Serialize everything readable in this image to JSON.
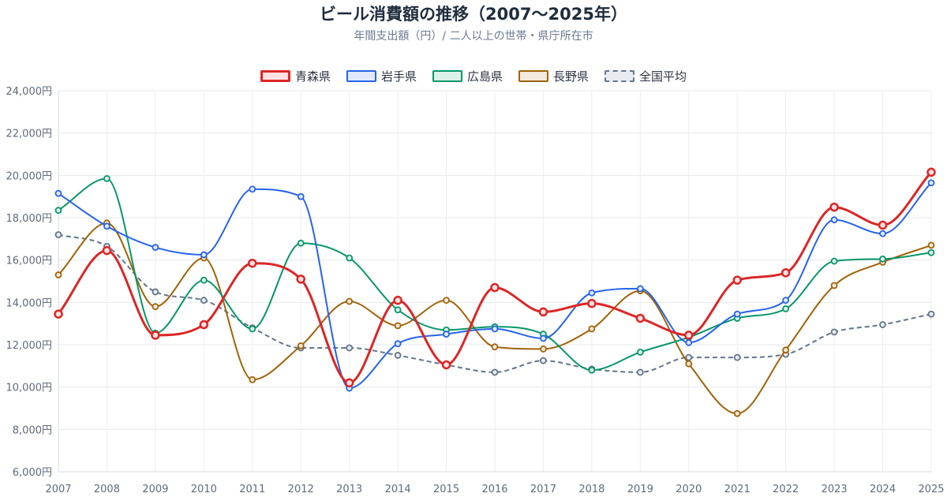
{
  "title": "ビール消費額の推移（2007〜2025年）",
  "subtitle": "年間支出額（円）/ 二人以上の世帯・県庁所在市",
  "chart_data": {
    "type": "line",
    "title": "ビール消費額の推移（2007〜2025年）",
    "subtitle": "年間支出額（円）/ 二人以上の世帯・県庁所在市",
    "x": [
      "2007",
      "2008",
      "2009",
      "2010",
      "2011",
      "2012",
      "2013",
      "2014",
      "2015",
      "2016",
      "2017",
      "2018",
      "2019",
      "2020",
      "2021",
      "2022",
      "2023",
      "2024",
      "2025"
    ],
    "y_ticks": [
      "6,000円",
      "8,000円",
      "10,000円",
      "12,000円",
      "14,000円",
      "16,000円",
      "18,000円",
      "20,000円",
      "22,000円",
      "24,000円"
    ],
    "ylim": [
      6000,
      24000
    ],
    "legend_position": "top",
    "grid": true,
    "series": [
      {
        "name": "青森県",
        "color": "#dc2626",
        "fill": "#fde2e2",
        "dashed": false,
        "width": 3,
        "values": [
          13450,
          16450,
          12450,
          12950,
          15850,
          15100,
          10200,
          14100,
          11050,
          14700,
          13550,
          13950,
          13250,
          12450,
          15050,
          15400,
          18500,
          17650,
          20150
        ]
      },
      {
        "name": "岩手県",
        "color": "#2563eb",
        "fill": "#e1eafd",
        "dashed": false,
        "width": 2,
        "values": [
          19150,
          17600,
          16600,
          16250,
          19350,
          19000,
          9950,
          12050,
          12500,
          12750,
          12300,
          14450,
          14650,
          12100,
          13450,
          14100,
          17900,
          17250,
          19650
        ]
      },
      {
        "name": "広島県",
        "color": "#059669",
        "fill": "#dcf1e9",
        "dashed": false,
        "width": 2,
        "values": [
          18350,
          19850,
          12550,
          15050,
          12750,
          16800,
          16100,
          13650,
          12700,
          12850,
          12500,
          10800,
          11650,
          12350,
          13250,
          13700,
          15950,
          16050,
          16350
        ]
      },
      {
        "name": "長野県",
        "color": "#a16207",
        "fill": "#f3e9dc",
        "dashed": false,
        "width": 2,
        "values": [
          15300,
          17750,
          13800,
          16100,
          10350,
          11950,
          14050,
          12900,
          14100,
          11900,
          11800,
          12750,
          14550,
          11100,
          8750,
          11750,
          14800,
          15900,
          16700
        ]
      },
      {
        "name": "全国平均",
        "color": "#64748b",
        "fill": "#e8ebef",
        "dashed": true,
        "width": 2,
        "values": [
          17200,
          16650,
          14500,
          14100,
          12800,
          11850,
          11850,
          11500,
          11050,
          10700,
          11250,
          10850,
          10700,
          11400,
          11400,
          11550,
          12600,
          12950,
          13450
        ]
      }
    ]
  }
}
